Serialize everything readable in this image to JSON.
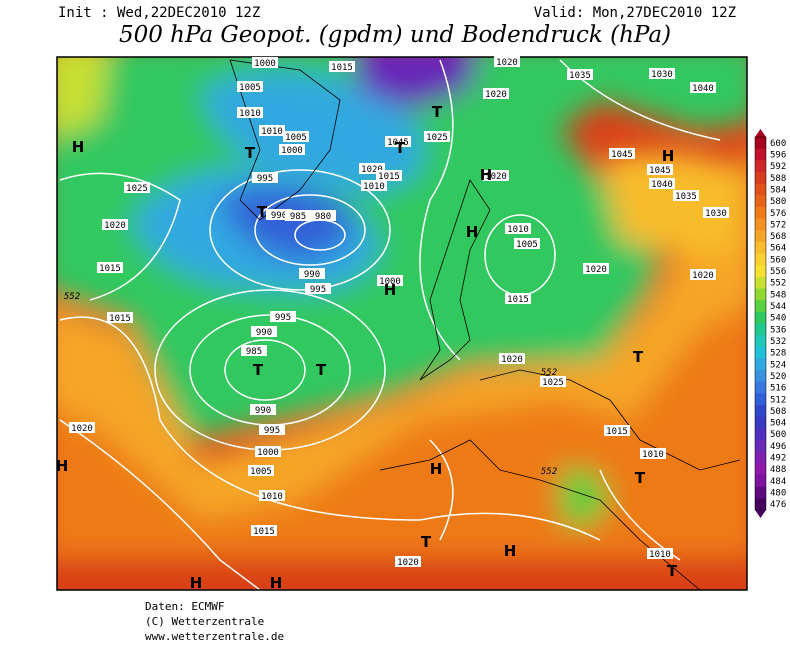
{
  "header": {
    "init": "Init : Wed,22DEC2010 12Z",
    "valid": "Valid: Mon,27DEC2010 12Z",
    "title": "500 hPa Geopot. (gpdm) und Bodendruck (hPa)"
  },
  "colorbar": {
    "levels": [
      600,
      596,
      592,
      588,
      584,
      580,
      576,
      572,
      568,
      564,
      560,
      556,
      552,
      548,
      544,
      540,
      536,
      532,
      528,
      524,
      520,
      516,
      512,
      508,
      504,
      500,
      496,
      492,
      488,
      484,
      480,
      476
    ],
    "colors": [
      "#a8001e",
      "#c0102a",
      "#d02828",
      "#d83c1e",
      "#e05018",
      "#e86418",
      "#ee7a18",
      "#f29020",
      "#f5a628",
      "#f8bc2c",
      "#fad030",
      "#f6e030",
      "#c8e030",
      "#90d830",
      "#58d040",
      "#30c860",
      "#20c890",
      "#20c8b8",
      "#20c0d8",
      "#30a8e0",
      "#3890e0",
      "#3878e0",
      "#3060d8",
      "#3048c8",
      "#3838c0",
      "#5030c0",
      "#6828b8",
      "#8020b0",
      "#9018a8",
      "#8010a0",
      "#600880",
      "#480060"
    ]
  },
  "isobar_labels": [
    1000,
    1015,
    1020,
    1035,
    1030,
    1040,
    1020,
    1005,
    1010,
    1010,
    1005,
    1000,
    1045,
    1025,
    1020,
    1015,
    1010,
    995,
    1025,
    990,
    985,
    980,
    1020,
    1020,
    1045,
    1045,
    1040,
    1035,
    1030,
    1010,
    1005,
    1020,
    1020,
    1015,
    990,
    995,
    1000,
    1015,
    1015,
    995,
    990,
    985,
    1020,
    1025,
    990,
    995,
    1000,
    1005,
    1010,
    1015,
    1020,
    1015,
    1010,
    1020,
    1010
  ],
  "contour_labels": [
    552,
    552,
    552
  ],
  "pressure_centers": [
    "H",
    "T",
    "T",
    "H",
    "H",
    "H",
    "T",
    "T",
    "H",
    "T",
    "H",
    "T",
    "T",
    "T",
    "H",
    "H",
    "H",
    "H",
    "T",
    "T"
  ],
  "footer": [
    "Daten: ECMWF",
    "(C) Wetterzentrale",
    "www.wetterzentrale.de"
  ]
}
